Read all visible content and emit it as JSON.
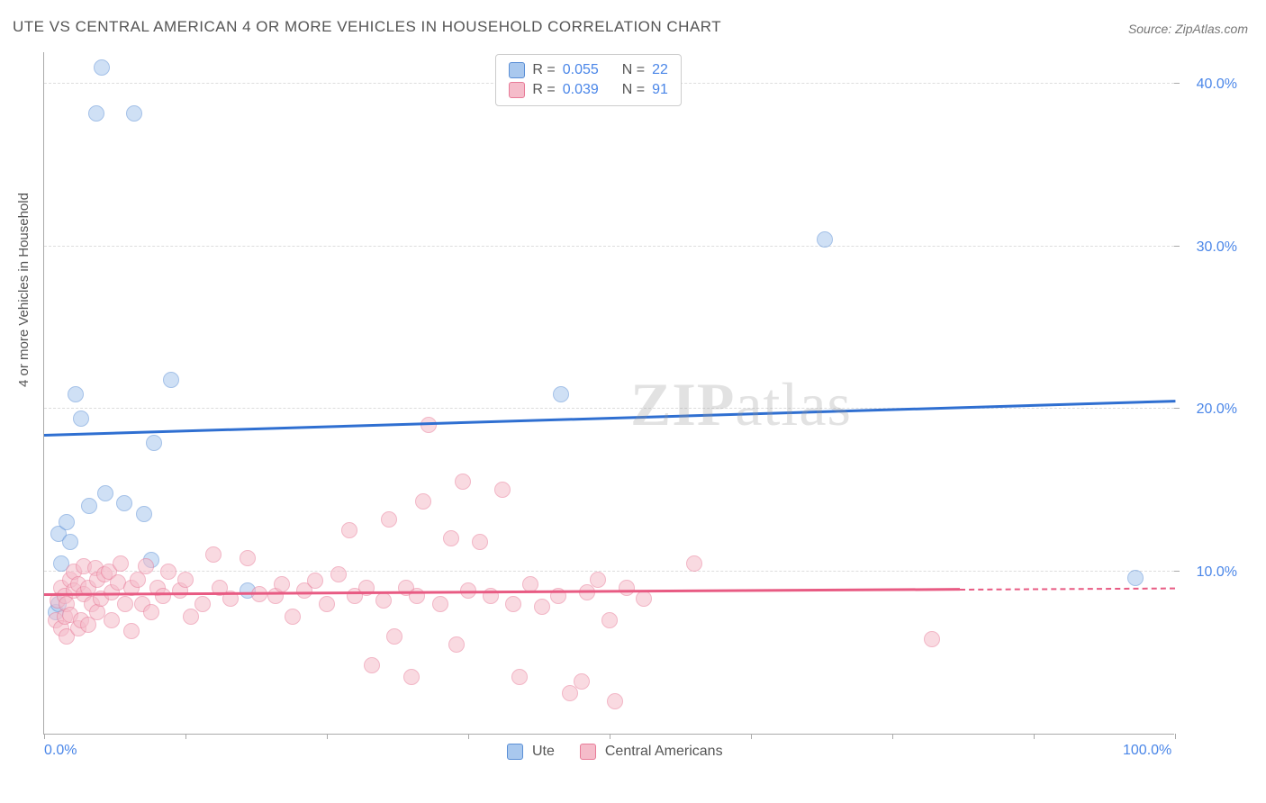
{
  "title": "UTE VS CENTRAL AMERICAN 4 OR MORE VEHICLES IN HOUSEHOLD CORRELATION CHART",
  "source": "Source: ZipAtlas.com",
  "ylabel": "4 or more Vehicles in Household",
  "watermark_zip": "ZIP",
  "watermark_atlas": "atlas",
  "chart": {
    "type": "scatter",
    "background_color": "#ffffff",
    "grid_color": "#dddddd",
    "axis_color": "#aaaaaa",
    "xlim": [
      0,
      100
    ],
    "ylim": [
      0,
      42
    ],
    "x_ticks": [
      0,
      12.5,
      25,
      37.5,
      50,
      62.5,
      75,
      87.5,
      100
    ],
    "x_tick_labels": {
      "0": "0.0%",
      "100": "100.0%"
    },
    "y_gridlines": [
      10,
      20,
      30,
      40
    ],
    "y_tick_labels": {
      "10": "10.0%",
      "20": "20.0%",
      "30": "30.0%",
      "40": "40.0%"
    },
    "label_color": "#4a86e8",
    "label_fontsize": 16,
    "point_radius": 9,
    "point_opacity": 0.55,
    "series": [
      {
        "name": "Ute",
        "color_fill": "#a9c8ee",
        "color_stroke": "#5b8fd6",
        "R": "0.055",
        "N": "22",
        "trend": {
          "y_start": 18.3,
          "y_end": 20.4,
          "color": "#2f6fd1"
        },
        "points": [
          [
            1.0,
            7.5
          ],
          [
            1.3,
            8.0
          ],
          [
            1.3,
            12.3
          ],
          [
            1.5,
            10.5
          ],
          [
            2.0,
            13.0
          ],
          [
            2.3,
            11.8
          ],
          [
            2.8,
            20.9
          ],
          [
            3.3,
            19.4
          ],
          [
            4.0,
            14.0
          ],
          [
            4.6,
            38.2
          ],
          [
            5.1,
            41.0
          ],
          [
            5.4,
            14.8
          ],
          [
            7.1,
            14.2
          ],
          [
            8.0,
            38.2
          ],
          [
            8.8,
            13.5
          ],
          [
            9.5,
            10.7
          ],
          [
            9.7,
            17.9
          ],
          [
            11.2,
            21.8
          ],
          [
            18.0,
            8.8
          ],
          [
            45.7,
            20.9
          ],
          [
            69.0,
            30.4
          ],
          [
            96.5,
            9.6
          ]
        ]
      },
      {
        "name": "Central Americans",
        "color_fill": "#f5bcca",
        "color_stroke": "#e87b98",
        "R": "0.039",
        "N": "91",
        "trend": {
          "y_start": 8.5,
          "y_end": 8.9,
          "color": "#e85b83",
          "dash_after_x": 81
        },
        "points": [
          [
            1.0,
            7.0
          ],
          [
            1.2,
            8.2
          ],
          [
            1.5,
            6.5
          ],
          [
            1.5,
            9.0
          ],
          [
            1.8,
            7.2
          ],
          [
            1.8,
            8.5
          ],
          [
            2.0,
            6.0
          ],
          [
            2.0,
            8.0
          ],
          [
            2.3,
            9.5
          ],
          [
            2.3,
            7.3
          ],
          [
            2.6,
            8.8
          ],
          [
            2.6,
            10.0
          ],
          [
            3.0,
            6.5
          ],
          [
            3.0,
            9.2
          ],
          [
            3.3,
            7.0
          ],
          [
            3.5,
            8.6
          ],
          [
            3.5,
            10.3
          ],
          [
            3.9,
            9.0
          ],
          [
            3.9,
            6.7
          ],
          [
            4.2,
            8.0
          ],
          [
            4.5,
            10.2
          ],
          [
            4.7,
            9.5
          ],
          [
            4.7,
            7.5
          ],
          [
            5.0,
            8.3
          ],
          [
            5.3,
            9.8
          ],
          [
            5.7,
            10.0
          ],
          [
            6.0,
            8.7
          ],
          [
            6.0,
            7.0
          ],
          [
            6.5,
            9.3
          ],
          [
            6.8,
            10.5
          ],
          [
            7.2,
            8.0
          ],
          [
            7.7,
            9.0
          ],
          [
            7.7,
            6.3
          ],
          [
            8.3,
            9.5
          ],
          [
            8.7,
            8.0
          ],
          [
            9.0,
            10.3
          ],
          [
            9.5,
            7.5
          ],
          [
            10.0,
            9.0
          ],
          [
            10.5,
            8.5
          ],
          [
            11.0,
            10.0
          ],
          [
            12.0,
            8.8
          ],
          [
            12.5,
            9.5
          ],
          [
            13.0,
            7.2
          ],
          [
            14.0,
            8.0
          ],
          [
            15.0,
            11.0
          ],
          [
            15.5,
            9.0
          ],
          [
            16.5,
            8.3
          ],
          [
            18.0,
            10.8
          ],
          [
            19.0,
            8.6
          ],
          [
            20.5,
            8.5
          ],
          [
            21.0,
            9.2
          ],
          [
            22.0,
            7.2
          ],
          [
            23.0,
            8.8
          ],
          [
            24.0,
            9.4
          ],
          [
            25.0,
            8.0
          ],
          [
            26.0,
            9.8
          ],
          [
            27.0,
            12.5
          ],
          [
            27.5,
            8.5
          ],
          [
            28.5,
            9.0
          ],
          [
            29.0,
            4.2
          ],
          [
            30.0,
            8.2
          ],
          [
            30.5,
            13.2
          ],
          [
            31.0,
            6.0
          ],
          [
            32.0,
            9.0
          ],
          [
            32.5,
            3.5
          ],
          [
            33.0,
            8.5
          ],
          [
            33.5,
            14.3
          ],
          [
            34.0,
            19.0
          ],
          [
            35.0,
            8.0
          ],
          [
            36.0,
            12.0
          ],
          [
            36.5,
            5.5
          ],
          [
            37.0,
            15.5
          ],
          [
            37.5,
            8.8
          ],
          [
            38.5,
            11.8
          ],
          [
            39.5,
            8.5
          ],
          [
            40.5,
            15.0
          ],
          [
            41.5,
            8.0
          ],
          [
            42.0,
            3.5
          ],
          [
            43.0,
            9.2
          ],
          [
            44.0,
            7.8
          ],
          [
            45.5,
            8.5
          ],
          [
            46.5,
            2.5
          ],
          [
            47.5,
            3.2
          ],
          [
            48.0,
            8.7
          ],
          [
            49.0,
            9.5
          ],
          [
            50.0,
            7.0
          ],
          [
            50.5,
            2.0
          ],
          [
            51.5,
            9.0
          ],
          [
            53.0,
            8.3
          ],
          [
            57.5,
            10.5
          ],
          [
            78.5,
            5.8
          ]
        ]
      }
    ]
  },
  "legend_top": {
    "R_label": "R =",
    "N_label": "N ="
  },
  "legend_bottom": [
    {
      "label": "Ute",
      "series_idx": 0
    },
    {
      "label": "Central Americans",
      "series_idx": 1
    }
  ]
}
